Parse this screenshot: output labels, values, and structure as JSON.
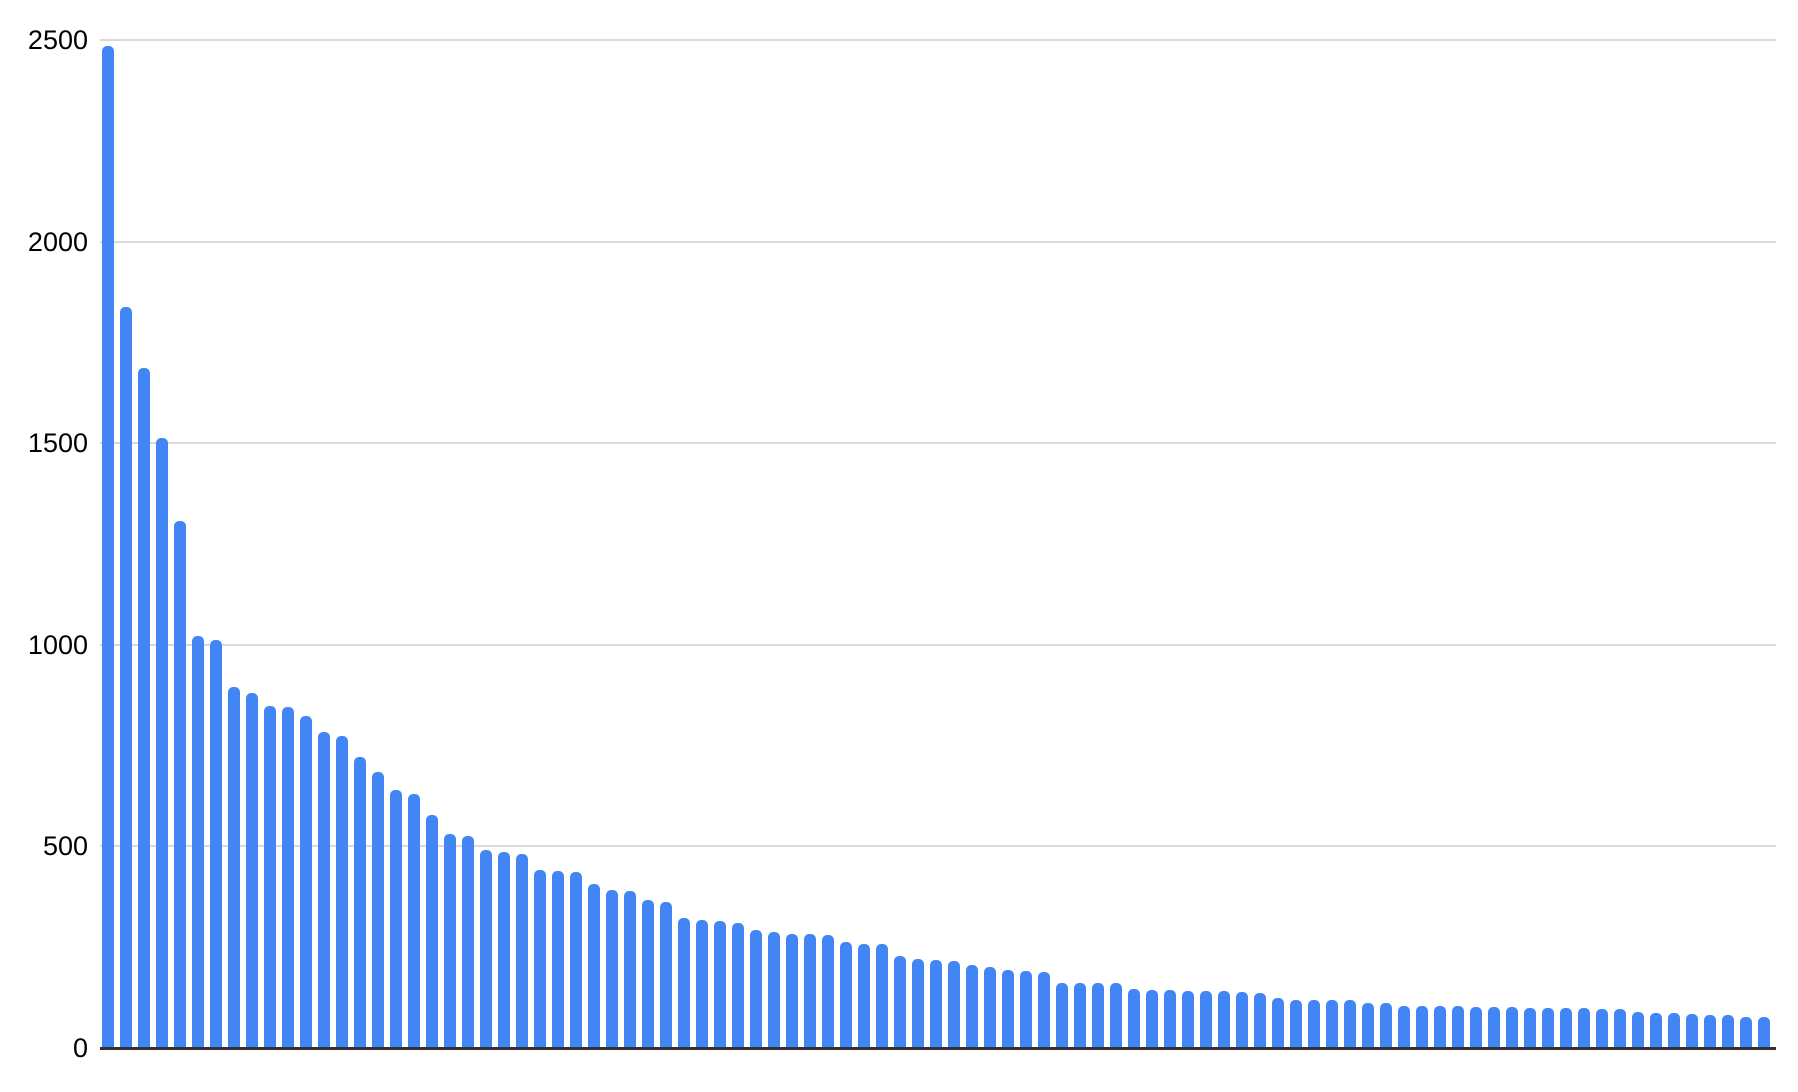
{
  "chart": {
    "background_color": "#ffffff",
    "bar_color": "#4285f4",
    "gridline_color": "#d9d9d9",
    "axis_line_color": "#333333",
    "label_color": "#000000",
    "y_tick_labels": [
      "0",
      "500",
      "1000",
      "1500",
      "2000",
      "2500"
    ]
  },
  "chart_data": {
    "type": "bar",
    "title": "",
    "xlabel": "",
    "ylabel": "",
    "ylim": [
      0,
      2500
    ],
    "y_ticks": [
      0,
      500,
      1000,
      1500,
      2000,
      2500
    ],
    "grid": true,
    "legend": false,
    "x_tick_labels_visible": false,
    "bar_count": 93,
    "values": [
      2486,
      1838,
      1686,
      1512,
      1308,
      1021,
      1013,
      896,
      880,
      848,
      846,
      823,
      783,
      775,
      721,
      684,
      639,
      629,
      577,
      530,
      527,
      492,
      486,
      482,
      442,
      440,
      436,
      407,
      391,
      390,
      368,
      361,
      322,
      318,
      316,
      311,
      293,
      287,
      283,
      282,
      281,
      262,
      259,
      258,
      229,
      221,
      219,
      217,
      205,
      201,
      193,
      192,
      188,
      162,
      161,
      161,
      160,
      146,
      143,
      143,
      142,
      142,
      142,
      138,
      137,
      123,
      120,
      119,
      119,
      118,
      112,
      112,
      104,
      104,
      103,
      103,
      101,
      101,
      101,
      100,
      100,
      100,
      99,
      96,
      96,
      89,
      88,
      87,
      84,
      83,
      82,
      78,
      78
    ]
  }
}
